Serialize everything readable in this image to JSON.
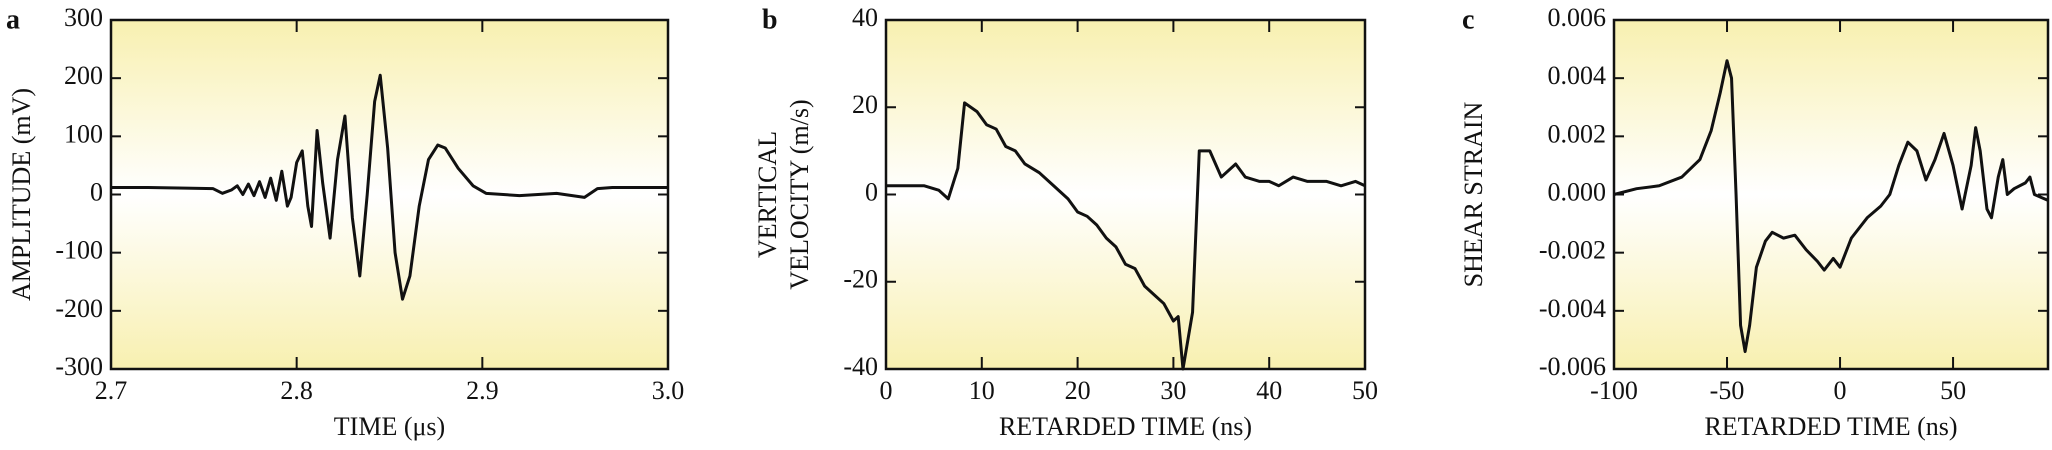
{
  "chart_data": [
    {
      "type": "line",
      "panel": "a",
      "xlabel": "TIME (μs)",
      "ylabel": [
        "AMPLITUDE (mV)"
      ],
      "xlim": [
        2.7,
        3.0
      ],
      "ylim": [
        -300,
        300
      ],
      "xticks": [
        2.7,
        2.8,
        2.9,
        {
          "value": 3.0,
          "label": "3.0"
        }
      ],
      "yticks": [
        300,
        200,
        100,
        0,
        -100,
        -200,
        -300
      ],
      "series": [
        {
          "color": "#111111",
          "x": [
            2.7,
            2.72,
            2.74,
            2.755,
            2.76,
            2.765,
            2.768,
            2.771,
            2.774,
            2.777,
            2.78,
            2.783,
            2.786,
            2.789,
            2.792,
            2.795,
            2.797,
            2.8,
            2.803,
            2.806,
            2.808,
            2.811,
            2.814,
            2.818,
            2.822,
            2.826,
            2.83,
            2.834,
            2.838,
            2.842,
            2.845,
            2.849,
            2.853,
            2.857,
            2.861,
            2.866,
            2.871,
            2.876,
            2.88,
            2.887,
            2.895,
            2.902,
            2.92,
            2.94,
            2.955,
            2.962,
            2.97,
            2.985,
            3.0
          ],
          "values": [
            12,
            12,
            11,
            10,
            2,
            8,
            15,
            0,
            18,
            -2,
            22,
            -5,
            28,
            -10,
            40,
            -20,
            -5,
            55,
            75,
            -20,
            -55,
            110,
            20,
            -75,
            60,
            135,
            -40,
            -140,
            0,
            160,
            205,
            80,
            -100,
            -180,
            -140,
            -20,
            60,
            85,
            80,
            45,
            15,
            2,
            -2,
            2,
            -5,
            10,
            12,
            12,
            12
          ]
        }
      ]
    },
    {
      "type": "line",
      "panel": "b",
      "xlabel": "RETARDED TIME (ns)",
      "ylabel": [
        "VERTICAL",
        "VELOCITY (m/s)"
      ],
      "xlim": [
        0,
        50
      ],
      "ylim": [
        -40,
        40
      ],
      "xticks": [
        0,
        10,
        20,
        30,
        40,
        50
      ],
      "yticks": [
        40,
        20,
        0,
        -20,
        -40
      ],
      "series": [
        {
          "color": "#111111",
          "x": [
            0,
            4,
            5.5,
            6.5,
            7.5,
            8.2,
            9.5,
            10.5,
            11.5,
            12.5,
            13.5,
            14.5,
            16,
            17.5,
            19,
            20,
            21,
            22,
            23,
            24,
            25,
            26,
            27,
            28,
            29,
            30,
            30.5,
            31,
            32,
            32.7,
            33.8,
            35,
            36.5,
            37.5,
            39,
            40,
            41,
            42.5,
            44,
            46,
            47.5,
            49,
            50
          ],
          "values": [
            2,
            2,
            1,
            -1,
            6,
            21,
            19,
            16,
            15,
            11,
            10,
            7,
            5,
            2,
            -1,
            -4,
            -5,
            -7,
            -10,
            -12,
            -16,
            -17,
            -21,
            -23,
            -25,
            -29,
            -28,
            -40,
            -27,
            10,
            10,
            4,
            7,
            4,
            3,
            3,
            2,
            4,
            3,
            3,
            2,
            3,
            2
          ]
        }
      ]
    },
    {
      "type": "line",
      "panel": "c",
      "xlabel": "RETARDED TIME (ns)",
      "ylabel": [
        "SHEAR STRAIN"
      ],
      "xlim": [
        -100,
        92
      ],
      "ylim": [
        -0.006,
        0.006
      ],
      "xticks": [
        -100,
        -50,
        0,
        50
      ],
      "yticks": [
        0.006,
        0.004,
        0.002,
        {
          "value": 0,
          "label": "0.000"
        },
        -0.002,
        -0.004,
        -0.006
      ],
      "series": [
        {
          "color": "#111111",
          "x": [
            -100,
            -90,
            -80,
            -70,
            -62,
            -57,
            -53,
            -50,
            -48,
            -46,
            -44,
            -42,
            -40,
            -37,
            -33,
            -30,
            -25,
            -20,
            -15,
            -10,
            -7,
            -3,
            0,
            5,
            12,
            18,
            22,
            26,
            30,
            34,
            38,
            42,
            46,
            50,
            54,
            58,
            60,
            62,
            65,
            67,
            70,
            72,
            74,
            77,
            82,
            84,
            86,
            92
          ],
          "values": [
            0.0,
            0.0002,
            0.0003,
            0.0006,
            0.0012,
            0.0022,
            0.0035,
            0.0046,
            0.004,
            0.0,
            -0.0045,
            -0.0054,
            -0.0045,
            -0.0025,
            -0.0016,
            -0.0013,
            -0.0015,
            -0.0014,
            -0.0019,
            -0.0023,
            -0.0026,
            -0.0022,
            -0.0025,
            -0.0015,
            -0.0008,
            -0.0004,
            0.0,
            0.001,
            0.0018,
            0.0015,
            0.0005,
            0.0012,
            0.0021,
            0.001,
            -0.0005,
            0.001,
            0.0023,
            0.0015,
            -0.0005,
            -0.0008,
            0.0006,
            0.0012,
            0.0,
            0.0002,
            0.0004,
            0.0006,
            0.0,
            -0.0002
          ]
        }
      ]
    }
  ]
}
